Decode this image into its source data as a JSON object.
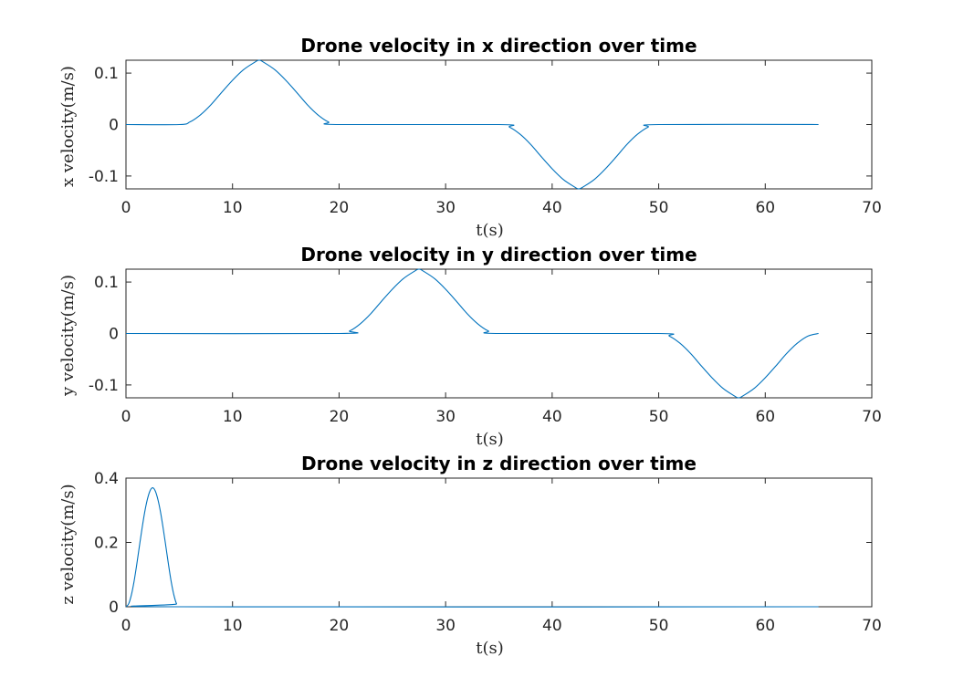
{
  "chart_data": [
    {
      "type": "line",
      "title": "Drone velocity in x direction over time",
      "xlabel": "t(s)",
      "ylabel": "x velocity(m/s)",
      "xlim": [
        0,
        70
      ],
      "ylim": [
        -0.125,
        0.125
      ],
      "xticks": [
        0,
        10,
        20,
        30,
        40,
        50,
        60,
        70
      ],
      "xtick_labels": [
        "0",
        "10",
        "20",
        "30",
        "40",
        "50",
        "60",
        "70"
      ],
      "yticks": [
        -0.1,
        0,
        0.1
      ],
      "ytick_labels": [
        "-0.1",
        "0",
        "0.1"
      ],
      "grid": false,
      "color": "#0072bd",
      "series": [
        {
          "name": "x velocity",
          "x": [
            0,
            5,
            6,
            7,
            8,
            9,
            10,
            11,
            12,
            12.5,
            13,
            14,
            15,
            16,
            17,
            18,
            19,
            20,
            35,
            36,
            37,
            38,
            39,
            40,
            41,
            42,
            42.5,
            43,
            44,
            45,
            46,
            47,
            48,
            49,
            50,
            65
          ],
          "y": [
            0,
            0,
            0.005,
            0.019,
            0.039,
            0.063,
            0.086,
            0.106,
            0.12,
            0.125,
            0.12,
            0.106,
            0.086,
            0.063,
            0.039,
            0.019,
            0.005,
            0,
            0,
            -0.005,
            -0.019,
            -0.039,
            -0.063,
            -0.086,
            -0.106,
            -0.12,
            -0.125,
            -0.12,
            -0.106,
            -0.086,
            -0.063,
            -0.039,
            -0.019,
            -0.005,
            0,
            0
          ]
        }
      ]
    },
    {
      "type": "line",
      "title": "Drone velocity in y direction over time",
      "xlabel": "t(s)",
      "ylabel": "y velocity(m/s)",
      "xlim": [
        0,
        70
      ],
      "ylim": [
        -0.125,
        0.125
      ],
      "xticks": [
        0,
        10,
        20,
        30,
        40,
        50,
        60,
        70
      ],
      "xtick_labels": [
        "0",
        "10",
        "20",
        "30",
        "40",
        "50",
        "60",
        "70"
      ],
      "yticks": [
        -0.1,
        0,
        0.1
      ],
      "ytick_labels": [
        "-0.1",
        "0",
        "0.1"
      ],
      "grid": false,
      "color": "#0072bd",
      "series": [
        {
          "name": "y velocity",
          "x": [
            0,
            20,
            21,
            22,
            23,
            24,
            25,
            26,
            27,
            27.5,
            28,
            29,
            30,
            31,
            32,
            33,
            34,
            35,
            50,
            51,
            52,
            53,
            54,
            55,
            56,
            57,
            57.5,
            58,
            59,
            60,
            61,
            62,
            63,
            64,
            65
          ],
          "y": [
            0,
            0,
            0.005,
            0.019,
            0.039,
            0.063,
            0.086,
            0.106,
            0.12,
            0.125,
            0.12,
            0.106,
            0.086,
            0.063,
            0.039,
            0.019,
            0.005,
            0,
            0,
            -0.005,
            -0.019,
            -0.039,
            -0.063,
            -0.086,
            -0.106,
            -0.12,
            -0.125,
            -0.12,
            -0.106,
            -0.086,
            -0.063,
            -0.039,
            -0.019,
            -0.005,
            0
          ]
        }
      ]
    },
    {
      "type": "line",
      "title": "Drone velocity in z direction over time",
      "xlabel": "t(s)",
      "ylabel": "z velocity(m/s)",
      "xlim": [
        0,
        70
      ],
      "ylim": [
        0,
        0.4
      ],
      "xticks": [
        0,
        10,
        20,
        30,
        40,
        50,
        60,
        70
      ],
      "xtick_labels": [
        "0",
        "10",
        "20",
        "30",
        "40",
        "50",
        "60",
        "70"
      ],
      "yticks": [
        0,
        0.2,
        0.4
      ],
      "ytick_labels": [
        "0",
        "0.2",
        "0.4"
      ],
      "grid": false,
      "color": "#0072bd",
      "series": [
        {
          "name": "z velocity",
          "x": [
            0,
            0.25,
            0.5,
            0.75,
            1,
            1.25,
            1.5,
            1.75,
            2,
            2.25,
            2.5,
            2.75,
            3,
            3.25,
            3.5,
            3.75,
            4,
            4.25,
            4.5,
            4.75,
            5,
            65
          ],
          "y": [
            0,
            0.009,
            0.036,
            0.077,
            0.129,
            0.186,
            0.242,
            0.293,
            0.333,
            0.36,
            0.37,
            0.36,
            0.333,
            0.293,
            0.242,
            0.186,
            0.129,
            0.077,
            0.036,
            0.009,
            0,
            0
          ]
        }
      ]
    }
  ]
}
